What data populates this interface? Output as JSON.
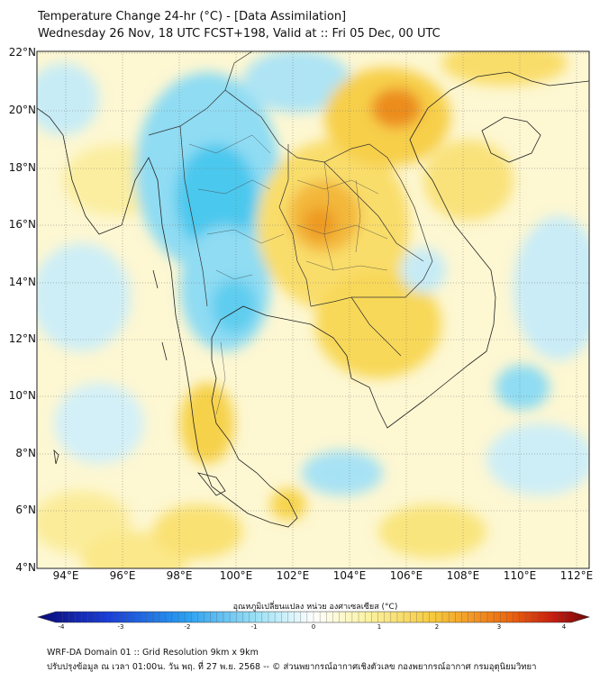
{
  "header": {
    "title_line1": "Temperature Change 24-hr (°C) - [Data Assimilation]",
    "title_line2": "Wednesday 26 Nov, 18 UTC FCST+198, Valid at :: Fri 05 Dec, 00 UTC"
  },
  "map": {
    "lat_labels": [
      "22°N",
      "20°N",
      "18°N",
      "16°N",
      "14°N",
      "12°N",
      "10°N",
      "8°N",
      "6°N",
      "4°N"
    ],
    "lon_labels": [
      "94°E",
      "96°E",
      "98°E",
      "100°E",
      "102°E",
      "104°E",
      "106°E",
      "108°E",
      "110°E",
      "112°E"
    ],
    "lat_range": [
      4,
      22
    ],
    "lon_range": [
      93,
      112.5
    ]
  },
  "colorbar": {
    "title": "อุณหภูมิเปลี่ยนแปลง หน่วย องศาเซลเซียส (°C)",
    "ticks": [
      "-4",
      "-3",
      "-2",
      "-1",
      "0",
      "1",
      "2",
      "3",
      "4"
    ],
    "range": [
      -4,
      4
    ],
    "colors": [
      "#0a0a78",
      "#1a3fd8",
      "#2aa0f0",
      "#9fe2f6",
      "#ffffff",
      "#fbf2a0",
      "#f6c83a",
      "#ee6a10",
      "#c21a10",
      "#6e0808"
    ]
  },
  "footer": {
    "line1": "WRF-DA Domain 01 :: Grid Resolution 9km x 9km",
    "line2": "ปรับปรุงข้อมูล ณ เวลา 01:00น. วัน พฤ. ที่ 27 พ.ย. 2568 -- © ส่วนพยากรณ์อากาศเชิงตัวเลข กองพยากรณ์อากาศ กรมอุตุนิยมวิทยา"
  }
}
